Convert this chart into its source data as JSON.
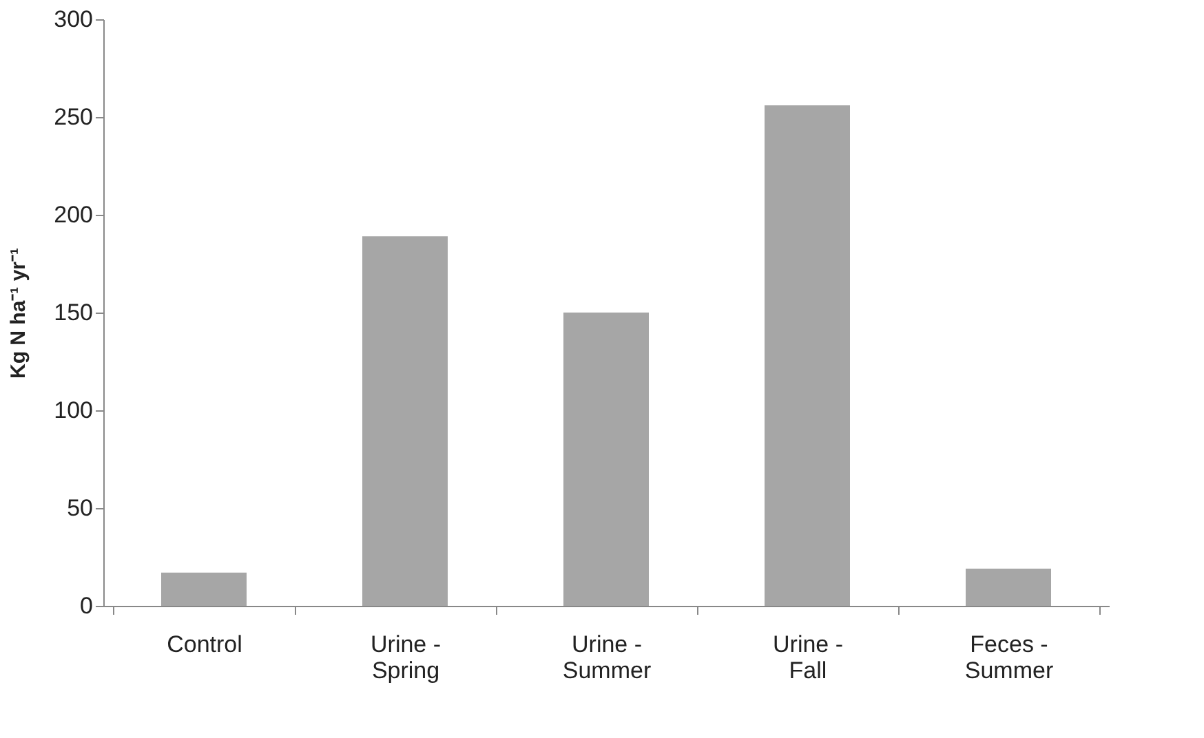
{
  "chart_data": {
    "type": "bar",
    "ylabel": "Kg N ha⁻¹ yr⁻¹",
    "categories": [
      "Control",
      "Urine - Spring",
      "Urine - Summer",
      "Urine - Fall",
      "Feces - Summer"
    ],
    "values": [
      17,
      189,
      150,
      256,
      19
    ],
    "color": "#a6a6a6",
    "ylim": [
      0,
      300
    ],
    "yticks": [
      0,
      50,
      100,
      150,
      200,
      250,
      300
    ],
    "grid": false
  }
}
